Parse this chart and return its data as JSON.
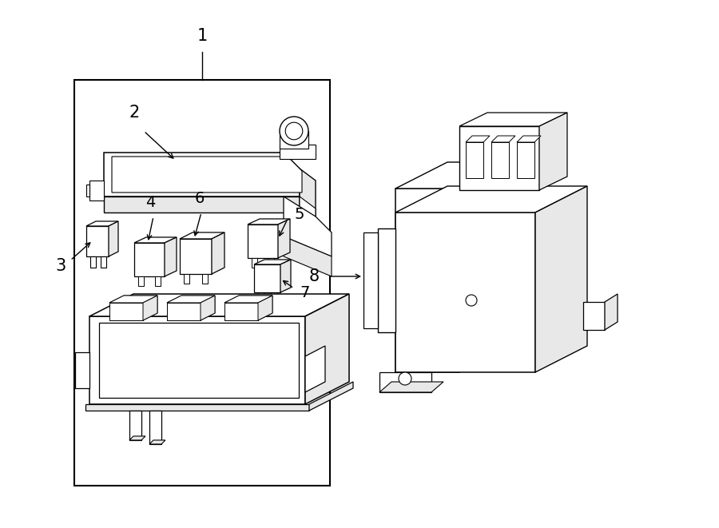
{
  "bg_color": "#ffffff",
  "line_color": "#000000",
  "fig_width": 9.0,
  "fig_height": 6.61,
  "label_fontsize": 13,
  "lw": 1.0
}
